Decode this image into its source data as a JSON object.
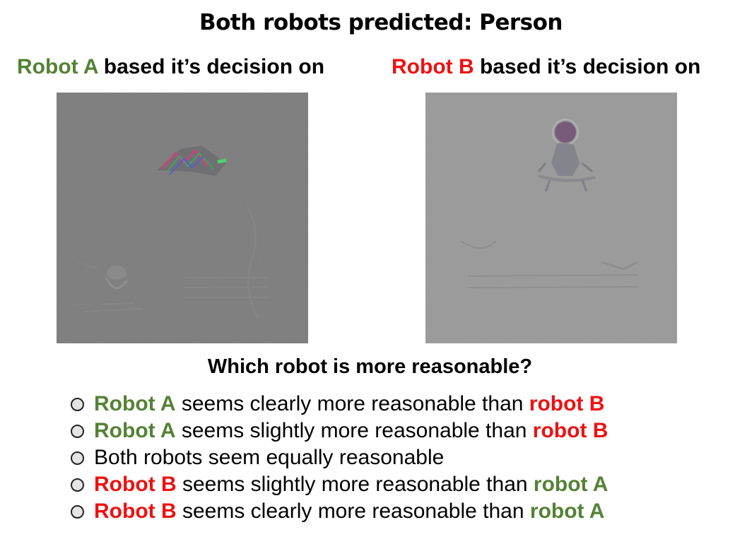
{
  "title": "Both robots predicted: Person",
  "panels": {
    "a": {
      "name": "Robot A",
      "suffix": " based it’s decision on"
    },
    "b": {
      "name": "Robot B",
      "suffix": " based it’s decision on"
    }
  },
  "question": "Which robot is more reasonable?",
  "options": [
    {
      "lead": "Robot A",
      "middle": " seems clearly more reasonable than ",
      "tail": "robot B"
    },
    {
      "lead": "Robot A",
      "middle": " seems slightly more reasonable than ",
      "tail": "robot B"
    },
    {
      "lead": "",
      "middle": "Both robots seem equally reasonable",
      "tail": ""
    },
    {
      "lead": "Robot B",
      "middle": " seems slightly more reasonable than ",
      "tail": "robot A"
    },
    {
      "lead": "Robot B",
      "middle": " seems clearly more reasonable than ",
      "tail": "robot A"
    }
  ],
  "colors": {
    "robot_a": "#548235",
    "robot_b": "#ee1111"
  },
  "icons": {
    "option_marker": "radio-circle-icon"
  }
}
